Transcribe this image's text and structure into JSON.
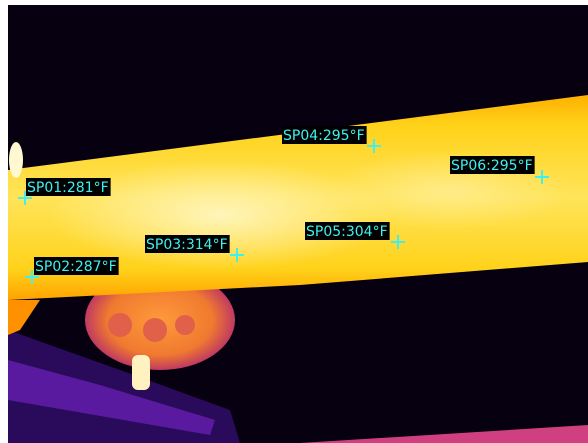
{
  "spots": [
    {
      "label": "SP01:281°F"
    },
    {
      "label": "SP02:287°F"
    },
    {
      "label": "SP03:314°F"
    },
    {
      "label": "SP04:295°F"
    },
    {
      "label": "SP05:304°F"
    },
    {
      "label": "SP06:295°F"
    }
  ]
}
